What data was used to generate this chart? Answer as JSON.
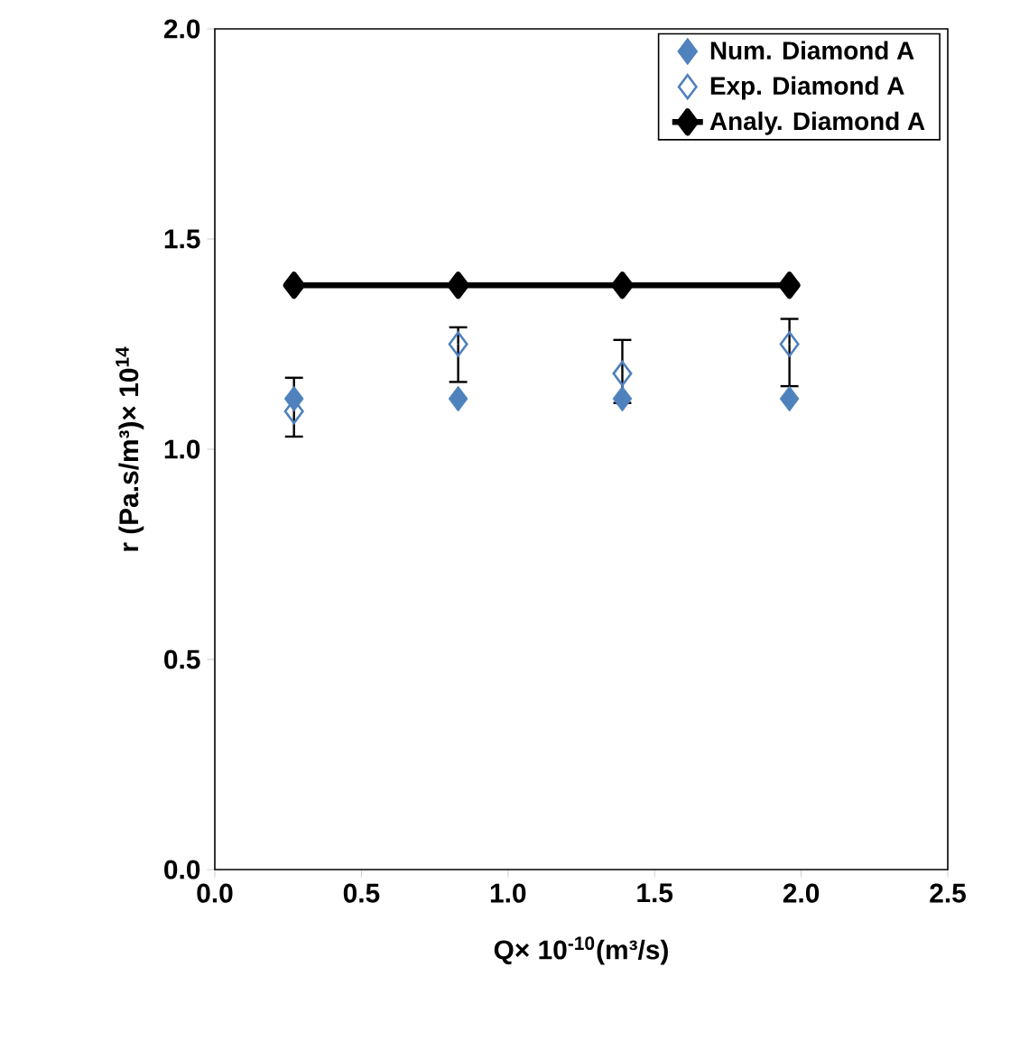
{
  "chart_data": {
    "type": "scatter",
    "xlabel": "Q× 10$^{-10}$(m³/s)",
    "ylabel": "r (Pa.s/m³)× 10$^{14}$",
    "xlim": [
      0,
      2.5
    ],
    "ylim": [
      0,
      2.0
    ],
    "xticks": [
      {
        "value": 0,
        "label": "0.0"
      },
      {
        "value": 0.5,
        "label": "0.5"
      },
      {
        "value": 1.0,
        "label": "1.0"
      },
      {
        "value": 1.5,
        "label": "1.5"
      },
      {
        "value": 2.0,
        "label": "2.0"
      },
      {
        "value": 2.5,
        "label": "2.5"
      }
    ],
    "yticks": [
      {
        "value": 0,
        "label": "0.0"
      },
      {
        "value": 0.5,
        "label": "0.5"
      },
      {
        "value": 1.0,
        "label": "1.0"
      },
      {
        "value": 1.5,
        "label": "1.5"
      },
      {
        "value": 2.0,
        "label": "2.0"
      }
    ],
    "x": [
      0.27,
      0.83,
      1.39,
      1.96
    ],
    "marker": "diamond",
    "legend": "top right",
    "grid": false,
    "series": [
      {
        "name": "Num. Diamond A",
        "color": "#4f81bd",
        "values": [
          1.12,
          1.12,
          1.12,
          1.12
        ]
      },
      {
        "name": "Exp. Diamond A",
        "color": "#4f81bd",
        "values": [
          1.09,
          1.25,
          1.18,
          1.25
        ],
        "errors": [
          [
            1.03,
            1.17
          ],
          [
            1.16,
            1.29
          ],
          [
            1.11,
            1.26
          ],
          [
            1.15,
            1.31
          ]
        ]
      },
      {
        "name": "Analy. Diamond A",
        "type": "line",
        "color": "#000000",
        "values": [
          1.39,
          1.39,
          1.39,
          1.39
        ]
      }
    ]
  }
}
